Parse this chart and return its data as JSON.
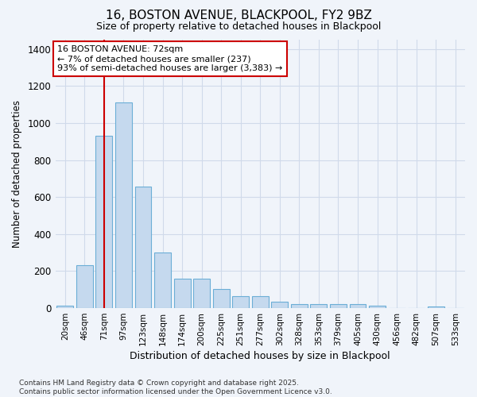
{
  "title_line1": "16, BOSTON AVENUE, BLACKPOOL, FY2 9BZ",
  "title_line2": "Size of property relative to detached houses in Blackpool",
  "xlabel": "Distribution of detached houses by size in Blackpool",
  "ylabel": "Number of detached properties",
  "categories": [
    "20sqm",
    "46sqm",
    "71sqm",
    "97sqm",
    "123sqm",
    "148sqm",
    "174sqm",
    "200sqm",
    "225sqm",
    "251sqm",
    "277sqm",
    "302sqm",
    "328sqm",
    "353sqm",
    "379sqm",
    "405sqm",
    "430sqm",
    "456sqm",
    "482sqm",
    "507sqm",
    "533sqm"
  ],
  "values": [
    15,
    230,
    930,
    1110,
    655,
    300,
    160,
    160,
    105,
    65,
    65,
    35,
    20,
    22,
    20,
    20,
    15,
    0,
    0,
    10,
    0
  ],
  "bar_color": "#c5d9ee",
  "bar_edge_color": "#6baed6",
  "bg_color": "#f0f4fa",
  "grid_color": "#d0daea",
  "annotation_line1": "16 BOSTON AVENUE: 72sqm",
  "annotation_line2": "← 7% of detached houses are smaller (237)",
  "annotation_line3": "93% of semi-detached houses are larger (3,383) →",
  "annotation_box_color": "#ffffff",
  "annotation_box_edge_color": "#cc0000",
  "vline_x_index": 2,
  "vline_color": "#cc0000",
  "ylim": [
    0,
    1450
  ],
  "yticks": [
    0,
    200,
    400,
    600,
    800,
    1000,
    1200,
    1400
  ],
  "footnote": "Contains HM Land Registry data © Crown copyright and database right 2025.\nContains public sector information licensed under the Open Government Licence v3.0."
}
